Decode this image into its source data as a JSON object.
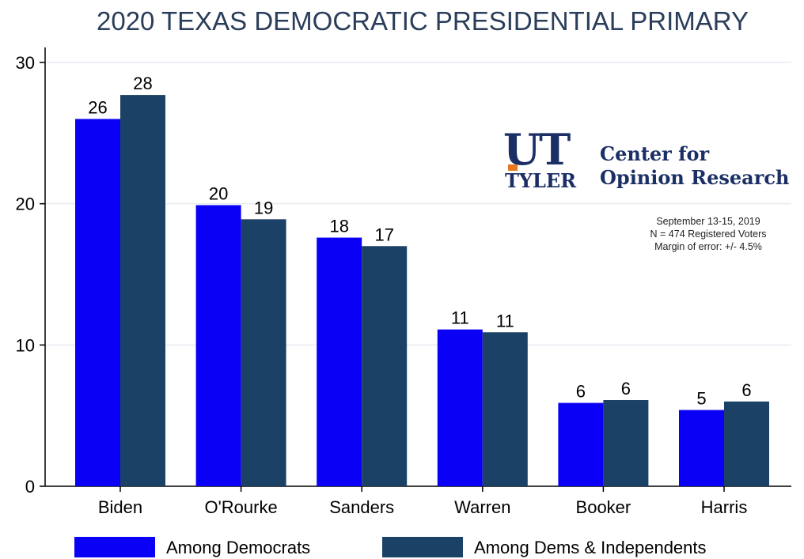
{
  "chart_data": {
    "type": "bar",
    "title": "2020 TEXAS DEMOCRATIC PRESIDENTIAL PRIMARY",
    "xlabel": "",
    "ylabel": "",
    "ylim": [
      0,
      30
    ],
    "yticks": [
      0,
      10,
      20,
      30
    ],
    "grid": true,
    "legend_position": "bottom",
    "categories": [
      "Biden",
      "O'Rourke",
      "Sanders",
      "Warren",
      "Booker",
      "Harris"
    ],
    "series": [
      {
        "name": "Among Democrats",
        "color": "#0a00f5",
        "values": [
          26,
          19.9,
          17.6,
          11.1,
          5.9,
          5.4
        ],
        "labels": [
          "26",
          "20",
          "18",
          "11",
          "6",
          "5"
        ]
      },
      {
        "name": "Among Dems & Independents",
        "color": "#1b4266",
        "values": [
          27.7,
          18.9,
          17,
          10.9,
          6.1,
          6
        ],
        "labels": [
          "28",
          "19",
          "17",
          "11",
          "6",
          "6"
        ]
      }
    ]
  },
  "branding": {
    "logo_ut": "UT",
    "logo_tyler": "TYLER",
    "center_line1": "Center for",
    "center_line2": "Opinion Research"
  },
  "survey": {
    "dates": "September 13-15, 2019",
    "sample": "N = 474 Registered Voters",
    "margin": "Margin of error: +/- 4.5%"
  },
  "colors": {
    "title": "#2a3d5a",
    "axis": "#000000",
    "grid": "#e6ecf0"
  }
}
